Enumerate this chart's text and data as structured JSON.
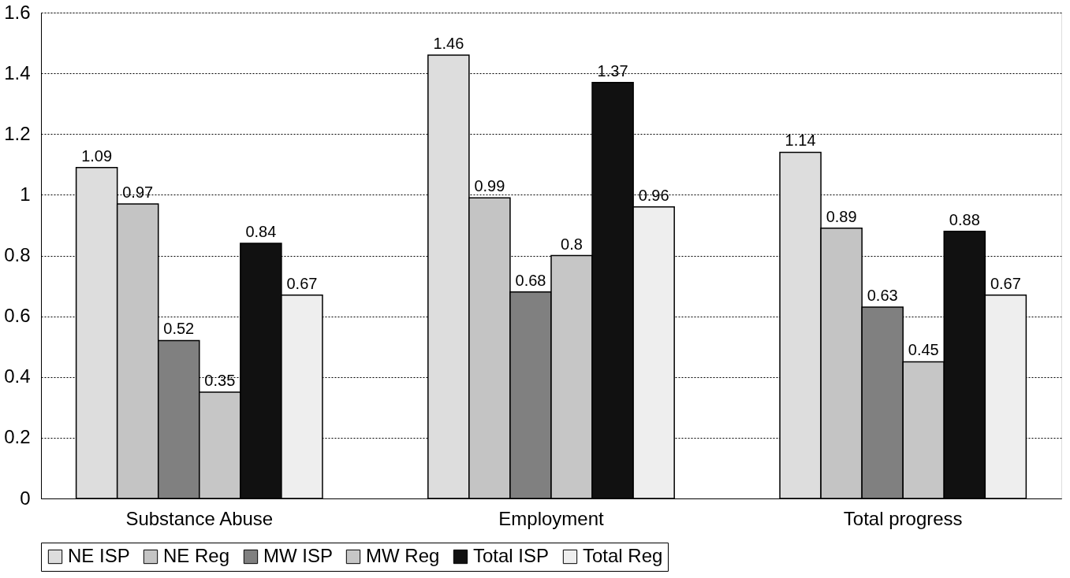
{
  "chart_data": {
    "type": "bar",
    "categories": [
      "Substance Abuse",
      "Employment",
      "Total progress"
    ],
    "series": [
      {
        "name": "NE ISP",
        "color": "#dddddd",
        "values": [
          1.09,
          1.46,
          1.14
        ]
      },
      {
        "name": "NE Reg",
        "color": "#c4c4c4",
        "values": [
          0.97,
          0.99,
          0.89
        ]
      },
      {
        "name": "MW ISP",
        "color": "#808080",
        "values": [
          0.52,
          0.68,
          0.63
        ]
      },
      {
        "name": "MW Reg",
        "color": "#c6c6c6",
        "values": [
          0.35,
          0.8,
          0.45
        ]
      },
      {
        "name": "Total ISP",
        "color": "#111111",
        "values": [
          0.84,
          1.37,
          0.88
        ]
      },
      {
        "name": "Total Reg",
        "color": "#eeeeee",
        "values": [
          0.67,
          0.96,
          0.67
        ]
      }
    ],
    "ylim": [
      0,
      1.6
    ],
    "yticks": [
      0,
      0.2,
      0.4,
      0.6,
      0.8,
      1,
      1.2,
      1.4,
      1.6
    ],
    "grid": "y",
    "legend": "bottom",
    "data_labels": true
  }
}
